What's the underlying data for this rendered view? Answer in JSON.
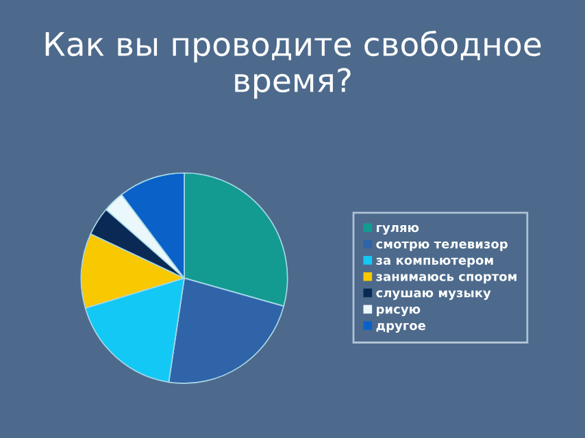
{
  "chart_data": {
    "type": "pie",
    "title": "Как вы проводите свободное время?",
    "categories": [
      "гуляю",
      "смотрю телевизор",
      "за компьютером",
      "занимаюсь спортом",
      "слушаю музыку",
      "рисую",
      "другое"
    ],
    "values": [
      29.3,
      23.1,
      18,
      11.5,
      4.4,
      3.3,
      10.4
    ],
    "colors": [
      "#139b92",
      "#2f64a8",
      "#14c8f5",
      "#f8c800",
      "#0a2a55",
      "#eaf8fb",
      "#0a62c8"
    ],
    "legend": "right"
  }
}
